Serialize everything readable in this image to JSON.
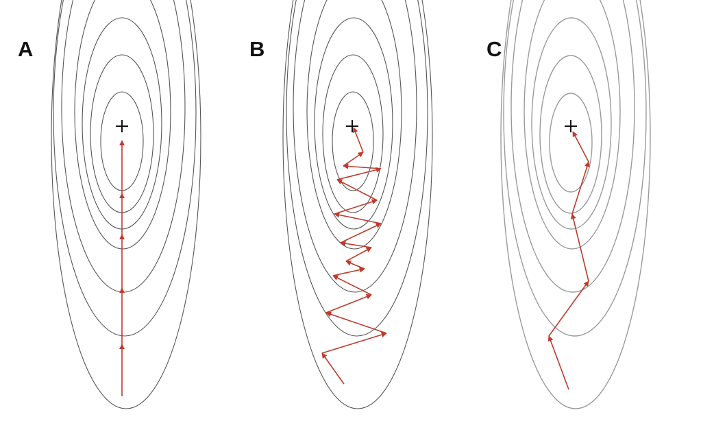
{
  "panels": [
    {
      "label": "A"
    },
    {
      "label": "B"
    },
    {
      "label": "C"
    }
  ],
  "colors": {
    "contour_a": "#555555",
    "contour_b": "#555555",
    "contour_c": "#9a9a9a",
    "path": "#c0392b",
    "minimum_marker": "#111111"
  },
  "icons": {
    "minimum": "plus-icon",
    "step": "arrow-icon"
  }
}
